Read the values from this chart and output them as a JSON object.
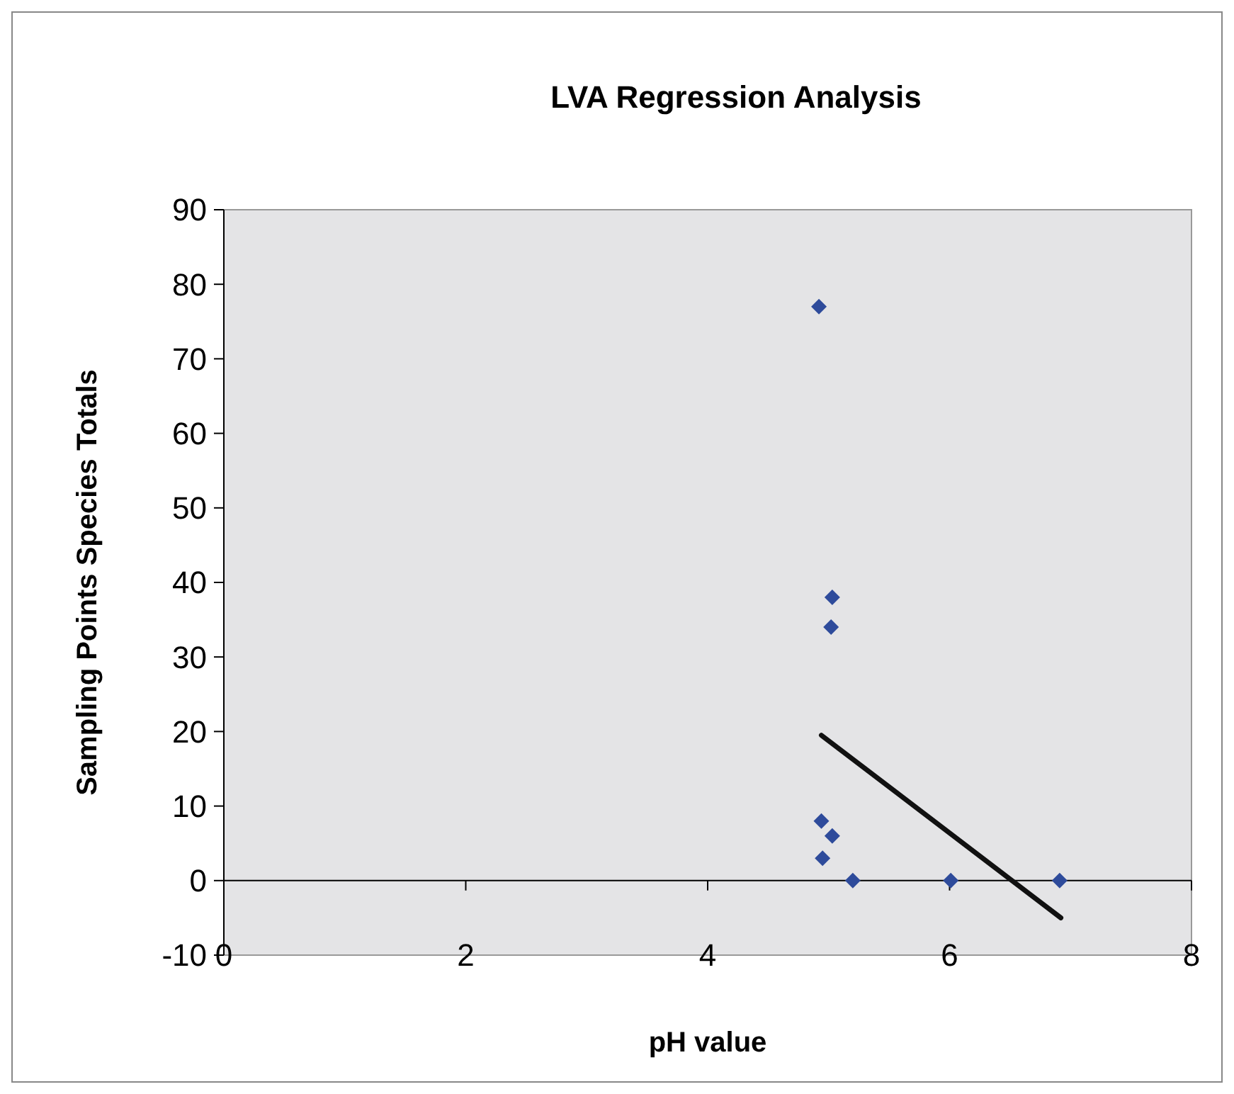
{
  "chart_data": {
    "type": "scatter",
    "title": "LVA Regression Analysis",
    "xlabel": "pH value",
    "ylabel": "Sampling Points Species Totals",
    "xlim": [
      0,
      8
    ],
    "xticks": [
      0,
      2,
      4,
      6,
      8
    ],
    "ylim": [
      -10,
      90
    ],
    "yticks": [
      -10,
      0,
      10,
      20,
      30,
      40,
      50,
      60,
      70,
      80,
      90
    ],
    "marker": "diamond",
    "series": [
      {
        "color": "#2e4b9b",
        "x": [
          4.92,
          5.03,
          5.02,
          4.94,
          5.03,
          4.95,
          5.2,
          6.01,
          6.91
        ],
        "values": [
          77,
          38,
          34,
          8,
          6,
          3,
          0,
          0,
          0
        ]
      },
      {
        "type": "line",
        "color": "#111111",
        "marker": "none",
        "line_style": "solid",
        "x": [
          4.94,
          6.92
        ],
        "values": [
          19.5,
          -5.0
        ]
      }
    ]
  }
}
